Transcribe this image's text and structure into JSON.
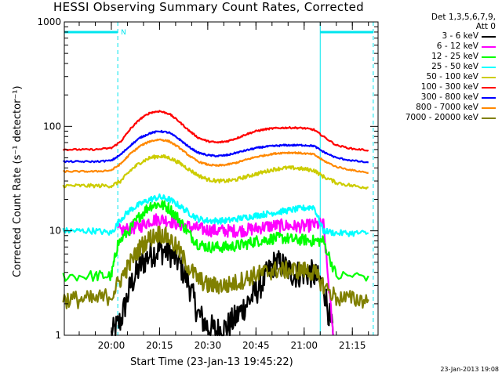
{
  "title": "HESSI Observing Summary Count Rates, Corrected",
  "legend": {
    "header_line1": "Det 1,3,5,6,7,9,",
    "header_line2": "Att 0"
  },
  "timestamp": "23-Jan-2013 19:08",
  "chart_data": {
    "type": "line",
    "title": "HESSI Observing Summary Count Rates, Corrected",
    "xlabel": "Start Time (23-Jan-13 19:45:22)",
    "ylabel": "Corrected Count Rate (s⁻¹ detector⁻¹)",
    "y_scale": "log",
    "ylim": [
      1,
      1000
    ],
    "y_ticks": [
      "1",
      "10",
      "100",
      "1000"
    ],
    "xlim": [
      "19:45:22",
      "21:23:00"
    ],
    "x_ticks": [
      "20:00",
      "20:15",
      "20:30",
      "20:45",
      "21:00",
      "21:15"
    ],
    "grid": false,
    "legend_position": "right",
    "attenuator_bars": [
      {
        "start": "19:45:22",
        "end": "20:02:00",
        "label": "N"
      },
      {
        "start": "21:05:00",
        "end": "21:21:30",
        "label": ""
      }
    ],
    "night_boundaries": [
      "20:02:00",
      "21:05:00",
      "21:21:30"
    ],
    "series": [
      {
        "name": "3 - 6 keV",
        "color": "#000000",
        "x": [
          "20:00",
          "20:03",
          "20:06",
          "20:09",
          "20:12",
          "20:15",
          "20:18",
          "20:21",
          "20:24",
          "20:27",
          "20:30",
          "20:33",
          "20:36",
          "20:39",
          "20:42",
          "20:45",
          "20:48",
          "20:51",
          "20:54",
          "20:57",
          "21:00",
          "21:03",
          "21:06",
          "21:09"
        ],
        "values": [
          1.0,
          1.4,
          3.0,
          4.6,
          6.0,
          6.5,
          6.3,
          5.0,
          3.2,
          1.6,
          1.2,
          1.1,
          1.2,
          1.5,
          2.0,
          2.6,
          3.6,
          5.0,
          4.5,
          3.8,
          4.0,
          3.8,
          3.0,
          1.0
        ]
      },
      {
        "name": "6 - 12 keV",
        "color": "#ff00ff",
        "x": [
          "20:02",
          "20:06",
          "20:09",
          "20:12",
          "20:15",
          "20:18",
          "20:21",
          "20:24",
          "20:27",
          "20:30",
          "20:33",
          "20:36",
          "20:39",
          "20:42",
          "20:45",
          "20:48",
          "20:51",
          "20:54",
          "20:57",
          "21:00",
          "21:03",
          "21:06",
          "21:09"
        ],
        "values": [
          10,
          10.5,
          11.0,
          12.5,
          13.0,
          12.5,
          11.5,
          11.0,
          10.5,
          10.2,
          10.0,
          10.0,
          10.0,
          10.2,
          10.5,
          11.0,
          11.2,
          11.2,
          11.0,
          11.0,
          11.5,
          11.5,
          1.0
        ]
      },
      {
        "name": "12 - 25 keV",
        "color": "#00ff00",
        "x": [
          "19:45",
          "19:55",
          "20:00",
          "20:02",
          "20:06",
          "20:09",
          "20:12",
          "20:15",
          "20:18",
          "20:21",
          "20:24",
          "20:27",
          "20:30",
          "20:33",
          "20:36",
          "20:39",
          "20:42",
          "20:45",
          "20:48",
          "20:51",
          "20:54",
          "20:57",
          "21:00",
          "21:03",
          "21:06",
          "21:10",
          "21:20"
        ],
        "values": [
          3.7,
          3.7,
          3.7,
          7.5,
          10.5,
          14.0,
          17.5,
          18.0,
          16.5,
          13.0,
          9.5,
          7.5,
          7.0,
          7.0,
          7.0,
          7.2,
          7.5,
          8.0,
          8.2,
          8.5,
          8.5,
          8.2,
          8.2,
          8.0,
          8.0,
          3.7,
          3.7
        ]
      },
      {
        "name": "25 - 50 keV",
        "color": "#00ffff",
        "x": [
          "19:45",
          "19:50",
          "19:55",
          "20:00",
          "20:03",
          "20:06",
          "20:09",
          "20:12",
          "20:15",
          "20:18",
          "20:21",
          "20:24",
          "20:27",
          "20:30",
          "20:33",
          "20:36",
          "20:39",
          "20:42",
          "20:45",
          "20:48",
          "20:51",
          "20:54",
          "20:57",
          "21:00",
          "21:03",
          "21:06",
          "21:10",
          "21:15",
          "21:20"
        ],
        "values": [
          10,
          10,
          10,
          9.5,
          13,
          16,
          18,
          20,
          21,
          20,
          17.5,
          15,
          13,
          12.5,
          12.5,
          12.5,
          13,
          13.5,
          14,
          14.5,
          15,
          15.5,
          16,
          16.5,
          17,
          10,
          9.5,
          9.5,
          9.5
        ]
      },
      {
        "name": "50 - 100 keV",
        "color": "#cccc00",
        "x": [
          "19:45",
          "19:50",
          "19:55",
          "20:00",
          "20:03",
          "20:06",
          "20:09",
          "20:12",
          "20:15",
          "20:18",
          "20:21",
          "20:24",
          "20:27",
          "20:30",
          "20:33",
          "20:36",
          "20:39",
          "20:42",
          "20:45",
          "20:48",
          "20:51",
          "20:54",
          "20:57",
          "21:00",
          "21:03",
          "21:06",
          "21:10",
          "21:15",
          "21:20"
        ],
        "values": [
          27,
          27,
          27,
          27,
          30,
          38,
          45,
          50,
          52,
          50,
          45,
          39,
          34,
          31,
          30,
          30,
          31,
          33,
          35,
          37,
          39,
          40,
          40,
          39,
          38,
          33,
          29,
          27,
          26
        ]
      },
      {
        "name": "100 - 300 keV",
        "color": "#ff0000",
        "x": [
          "19:45",
          "19:50",
          "19:55",
          "20:00",
          "20:03",
          "20:06",
          "20:09",
          "20:12",
          "20:15",
          "20:18",
          "20:21",
          "20:24",
          "20:27",
          "20:30",
          "20:33",
          "20:36",
          "20:39",
          "20:42",
          "20:45",
          "20:48",
          "20:51",
          "20:54",
          "20:57",
          "21:00",
          "21:03",
          "21:06",
          "21:10",
          "21:15",
          "21:20"
        ],
        "values": [
          60,
          60,
          60,
          62,
          72,
          95,
          118,
          135,
          140,
          132,
          112,
          92,
          78,
          72,
          70,
          72,
          77,
          84,
          90,
          94,
          96,
          97,
          97,
          96,
          93,
          80,
          66,
          61,
          59
        ]
      },
      {
        "name": "300 - 800 keV",
        "color": "#0000ff",
        "x": [
          "19:45",
          "19:50",
          "19:55",
          "20:00",
          "20:03",
          "20:06",
          "20:09",
          "20:12",
          "20:15",
          "20:18",
          "20:21",
          "20:24",
          "20:27",
          "20:30",
          "20:33",
          "20:36",
          "20:39",
          "20:42",
          "20:45",
          "20:48",
          "20:51",
          "20:54",
          "20:57",
          "21:00",
          "21:03",
          "21:06",
          "21:10",
          "21:15",
          "21:20"
        ],
        "values": [
          46,
          46,
          46,
          47,
          54,
          66,
          78,
          86,
          90,
          87,
          76,
          64,
          56,
          53,
          52,
          53,
          56,
          59,
          62,
          64,
          65,
          66,
          66,
          66,
          65,
          57,
          50,
          47,
          45
        ]
      },
      {
        "name": "800 - 7000 keV",
        "color": "#ff8800",
        "x": [
          "19:45",
          "19:50",
          "19:55",
          "20:00",
          "20:03",
          "20:06",
          "20:09",
          "20:12",
          "20:15",
          "20:18",
          "20:21",
          "20:24",
          "20:27",
          "20:30",
          "20:33",
          "20:36",
          "20:39",
          "20:42",
          "20:45",
          "20:48",
          "20:51",
          "20:54",
          "20:57",
          "21:00",
          "21:03",
          "21:06",
          "21:10",
          "21:15",
          "21:20"
        ],
        "values": [
          37,
          37,
          37,
          38,
          44,
          55,
          65,
          72,
          75,
          72,
          63,
          53,
          46,
          43,
          42,
          43,
          45,
          48,
          51,
          53,
          55,
          56,
          56,
          55,
          54,
          47,
          41,
          38,
          36
        ]
      },
      {
        "name": "7000 - 20000 keV",
        "color": "#808000",
        "x": [
          "19:45",
          "19:50",
          "19:55",
          "20:00",
          "20:03",
          "20:06",
          "20:09",
          "20:12",
          "20:15",
          "20:18",
          "20:21",
          "20:24",
          "20:27",
          "20:30",
          "20:33",
          "20:36",
          "20:39",
          "20:42",
          "20:45",
          "20:48",
          "20:51",
          "20:54",
          "20:57",
          "21:00",
          "21:03",
          "21:06",
          "21:10",
          "21:15",
          "21:20"
        ],
        "values": [
          2.2,
          2.2,
          2.2,
          2.4,
          3.5,
          5.0,
          7.0,
          8.5,
          9.5,
          8.5,
          6.5,
          4.5,
          3.5,
          3.0,
          3.0,
          3.0,
          3.2,
          3.5,
          3.8,
          4.0,
          4.2,
          4.2,
          4.2,
          4.2,
          4.0,
          3.0,
          2.3,
          2.2,
          2.2
        ]
      }
    ]
  }
}
